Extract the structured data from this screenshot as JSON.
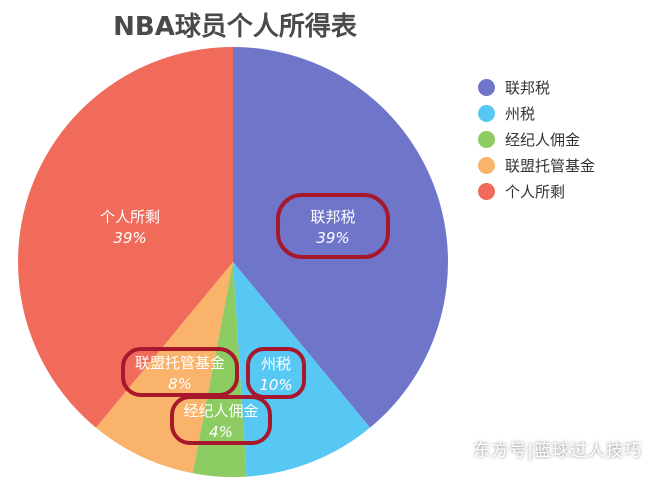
{
  "title": "NBA球员个人所得表",
  "watermark": "东方号|篮球过人技巧",
  "highlight_color": "#a7182d",
  "chart_data": {
    "type": "pie",
    "title": "NBA球员个人所得表",
    "legend_position": "right",
    "slices": [
      {
        "label": "联邦税",
        "value": 39,
        "value_label": "39%",
        "color": "#6f76c9",
        "highlighted": true
      },
      {
        "label": "州税",
        "value": 10,
        "value_label": "10%",
        "color": "#57c8f4",
        "highlighted": true
      },
      {
        "label": "经纪人佣金",
        "value": 4,
        "value_label": "4%",
        "color": "#8ccc63",
        "highlighted": true
      },
      {
        "label": "联盟托管基金",
        "value": 8,
        "value_label": "8%",
        "color": "#f9b36a",
        "highlighted": true
      },
      {
        "label": "个人所剩",
        "value": 39,
        "value_label": "39%",
        "color": "#f06b59",
        "highlighted": false
      }
    ]
  }
}
